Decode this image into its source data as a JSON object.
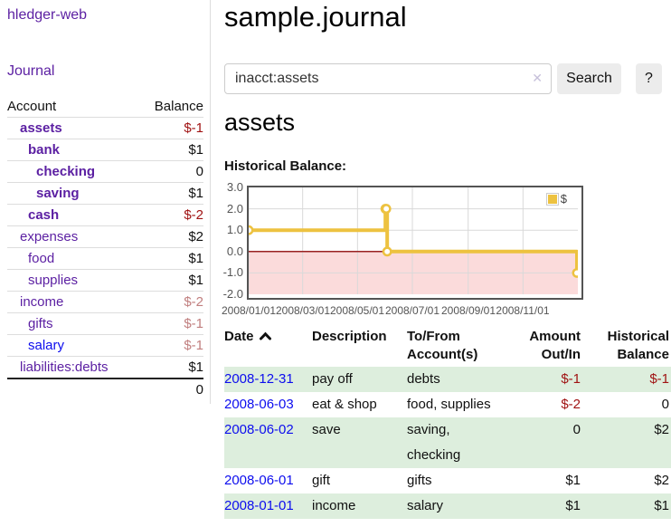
{
  "sidebar": {
    "brand": "hledger-web",
    "nav": {
      "journal": "Journal"
    },
    "accounts_table": {
      "account_header": "Account",
      "balance_header": "Balance",
      "rows": [
        {
          "name": "assets",
          "balance": "$-1",
          "indent": 1,
          "bold": true,
          "balance_tone": "negative"
        },
        {
          "name": "bank",
          "balance": "$1",
          "indent": 2,
          "bold": true,
          "balance_tone": "normal"
        },
        {
          "name": "checking",
          "balance": "0",
          "indent": 3,
          "bold": true,
          "balance_tone": "normal"
        },
        {
          "name": "saving",
          "balance": "$1",
          "indent": 3,
          "bold": true,
          "balance_tone": "normal"
        },
        {
          "name": "cash",
          "balance": "$-2",
          "indent": 2,
          "bold": true,
          "balance_tone": "negative"
        },
        {
          "name": "expenses",
          "balance": "$2",
          "indent": 1,
          "bold": false,
          "balance_tone": "normal"
        },
        {
          "name": "food",
          "balance": "$1",
          "indent": 2,
          "bold": false,
          "balance_tone": "normal"
        },
        {
          "name": "supplies",
          "balance": "$1",
          "indent": 2,
          "bold": false,
          "balance_tone": "normal"
        },
        {
          "name": "income",
          "balance": "$-2",
          "indent": 1,
          "bold": false,
          "balance_tone": "negative-dim"
        },
        {
          "name": "gifts",
          "balance": "$-1",
          "indent": 2,
          "bold": false,
          "balance_tone": "negative-dim"
        },
        {
          "name": "salary",
          "balance": "$-1",
          "indent": 2,
          "bold": false,
          "balance_tone": "negative-dim",
          "link_color": "blue"
        },
        {
          "name": "liabilities:debts",
          "balance": "$1",
          "indent": 1,
          "bold": false,
          "balance_tone": "normal"
        }
      ],
      "total": "0"
    }
  },
  "header": {
    "title": "sample.journal"
  },
  "search": {
    "value": "inacct:assets",
    "clear_icon": "✕",
    "search_button": "Search",
    "help_button": "?"
  },
  "account_view": {
    "title": "assets",
    "chart_title": "Historical Balance:"
  },
  "chart_data": {
    "type": "line",
    "style": "step-after",
    "title": "Historical Balance:",
    "series": [
      {
        "name": "$",
        "color": "#edc240",
        "points": [
          {
            "date": "2008-01-01",
            "value": 1
          },
          {
            "date": "2008-06-01",
            "value": 2
          },
          {
            "date": "2008-06-02",
            "value": 2
          },
          {
            "date": "2008-06-03",
            "value": 0
          },
          {
            "date": "2008-12-31",
            "value": -1
          }
        ]
      }
    ],
    "x_ticks": [
      {
        "date": "2008-01-01",
        "label": "2008/01/01"
      },
      {
        "date": "2008-03-01",
        "label": "2008/03/01"
      },
      {
        "date": "2008-05-01",
        "label": "2008/05/01"
      },
      {
        "date": "2008-07-01",
        "label": "2008/07/01"
      },
      {
        "date": "2008-09-01",
        "label": "2008/09/01"
      },
      {
        "date": "2008-11-01",
        "label": "2008/11/01"
      }
    ],
    "y_ticks": [
      "3.0",
      "2.0",
      "1.0",
      "0.0",
      "-1.0",
      "-2.0"
    ],
    "ylim": [
      -2,
      3
    ],
    "x_range": {
      "start": "2008-01-01",
      "days": 366
    },
    "grid": true,
    "legend": {
      "label": "$",
      "position": "top-right"
    },
    "colors": {
      "grid_line": "#d9d9d9",
      "plot_border": "#545454",
      "tick_text": "#545454",
      "negative_region_fill": "#fbdbdb",
      "zero_line": "#992222",
      "marker_fill": "#ffffff"
    }
  },
  "register": {
    "headers": {
      "date": "Date",
      "sort_icon": "chevron-up",
      "description": "Description",
      "accounts": "To/From Account(s)",
      "amount": "Amount Out/In",
      "balance": "Historical Balance"
    },
    "rows": [
      {
        "date": "2008-12-31",
        "description": "pay off",
        "accounts": "debts",
        "amount": "$-1",
        "amount_tone": "negative",
        "balance": "$-1",
        "balance_tone": "negative",
        "shaded": true
      },
      {
        "date": "2008-06-03",
        "description": "eat & shop",
        "accounts": "food, supplies",
        "amount": "$-2",
        "amount_tone": "negative",
        "balance": "0",
        "balance_tone": "normal",
        "shaded": false
      },
      {
        "date": "2008-06-02",
        "description": "save",
        "accounts": "saving, checking",
        "amount": "0",
        "amount_tone": "normal",
        "balance": "$2",
        "balance_tone": "normal",
        "shaded": true
      },
      {
        "date": "2008-06-01",
        "description": "gift",
        "accounts": "gifts",
        "amount": "$1",
        "amount_tone": "normal",
        "balance": "$2",
        "balance_tone": "normal",
        "shaded": false
      },
      {
        "date": "2008-01-01",
        "description": "income",
        "accounts": "salary",
        "amount": "$1",
        "amount_tone": "normal",
        "balance": "$1",
        "balance_tone": "normal",
        "shaded": true
      }
    ]
  },
  "colors": {
    "link_purple": "#5b1fa2",
    "link_blue": "#0d0dee",
    "negative_strong": "#a01313",
    "negative_dim": "#c17f7f",
    "row_shade_green": "#ddeedd",
    "button_bg": "#ececec"
  }
}
